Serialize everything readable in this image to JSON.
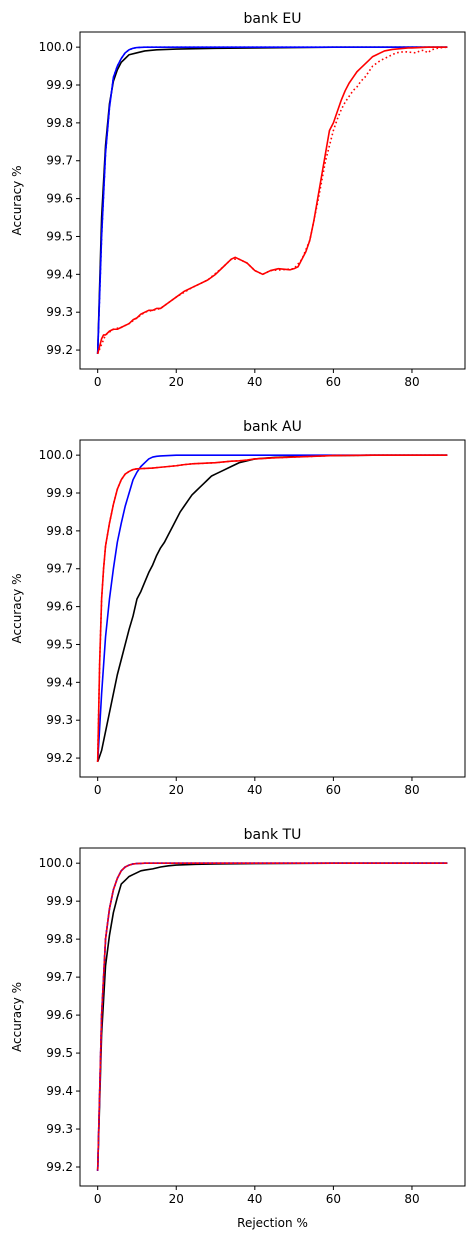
{
  "chart_data": [
    {
      "type": "line",
      "title": "bank EU",
      "xlabel": "",
      "ylabel": "Accuracy %",
      "xlim": [
        -4.5,
        93.5
      ],
      "ylim": [
        99.15,
        100.04
      ],
      "xticks": [
        "0",
        "20",
        "40",
        "60",
        "80"
      ],
      "yticks": [
        "99.2",
        "99.3",
        "99.4",
        "99.5",
        "99.6",
        "99.7",
        "99.8",
        "99.9",
        "100.0"
      ],
      "grid": false,
      "series": [
        {
          "color": "#000000",
          "style": "solid",
          "x": [
            0,
            1,
            2,
            3,
            4,
            5,
            6,
            7,
            8,
            10,
            12,
            15,
            20,
            30,
            40,
            60,
            80,
            89
          ],
          "y": [
            99.19,
            99.55,
            99.74,
            99.85,
            99.91,
            99.94,
            99.96,
            99.97,
            99.98,
            99.985,
            99.99,
            99.993,
            99.995,
            99.997,
            99.998,
            100.0,
            100.0,
            100.0
          ]
        },
        {
          "color": "#0000ff",
          "style": "solid",
          "x": [
            0,
            1,
            2,
            3,
            4,
            5,
            6,
            7,
            8,
            9,
            10,
            12,
            15,
            20,
            40,
            60,
            89
          ],
          "y": [
            99.19,
            99.5,
            99.72,
            99.84,
            99.92,
            99.95,
            99.97,
            99.985,
            99.993,
            99.997,
            99.999,
            100.0,
            100.0,
            100.0,
            100.0,
            100.0,
            100.0
          ]
        },
        {
          "color": "#0000ff",
          "style": "dotted",
          "x": [
            0,
            1,
            2,
            3,
            4,
            5,
            6,
            7,
            8,
            9,
            10,
            12,
            15,
            20,
            40,
            60,
            89
          ],
          "y": [
            99.19,
            99.5,
            99.72,
            99.84,
            99.92,
            99.95,
            99.97,
            99.985,
            99.993,
            99.997,
            99.999,
            100.0,
            100.0,
            100.0,
            100.0,
            100.0,
            100.0
          ]
        },
        {
          "color": "#ff0000",
          "style": "solid",
          "x": [
            0,
            0.5,
            1,
            1.5,
            2,
            3,
            4,
            5,
            6,
            7,
            8,
            9,
            10,
            11,
            12,
            13,
            14,
            15,
            16,
            18,
            20,
            22,
            24,
            26,
            28,
            30,
            32,
            33,
            34,
            35,
            36,
            37,
            38,
            40,
            41,
            42,
            44,
            46,
            48,
            49,
            50,
            51,
            52,
            53,
            54,
            55,
            56,
            57,
            58,
            59,
            60,
            61,
            62,
            63,
            64,
            65,
            66,
            67,
            68,
            69,
            70,
            71,
            72,
            73,
            74,
            75,
            76,
            77,
            78,
            79,
            80,
            82,
            84,
            86,
            89
          ],
          "y": [
            99.19,
            99.21,
            99.23,
            99.24,
            99.24,
            99.25,
            99.255,
            99.255,
            99.26,
            99.265,
            99.27,
            99.28,
            99.285,
            99.295,
            99.3,
            99.305,
            99.305,
            99.31,
            99.31,
            99.325,
            99.34,
            99.355,
            99.365,
            99.375,
            99.385,
            99.4,
            99.42,
            99.43,
            99.44,
            99.445,
            99.44,
            99.435,
            99.43,
            99.41,
            99.405,
            99.4,
            99.41,
            99.415,
            99.413,
            99.412,
            99.415,
            99.42,
            99.44,
            99.46,
            99.49,
            99.54,
            99.6,
            99.66,
            99.72,
            99.78,
            99.8,
            99.83,
            99.86,
            99.885,
            99.905,
            99.92,
            99.935,
            99.945,
            99.955,
            99.965,
            99.975,
            99.98,
            99.985,
            99.99,
            99.992,
            99.994,
            99.995,
            99.996,
            99.997,
            99.998,
            99.998,
            99.999,
            100.0,
            100.0,
            100.0
          ]
        },
        {
          "color": "#ff0000",
          "style": "dotted",
          "x": [
            0,
            2,
            4,
            6,
            8,
            10,
            12,
            14,
            16,
            20,
            24,
            28,
            32,
            34,
            36,
            38,
            40,
            42,
            44,
            48,
            50,
            52,
            54,
            56,
            58,
            59,
            60,
            61,
            62,
            63,
            64,
            65,
            66,
            67,
            68,
            69,
            70,
            72,
            74,
            76,
            78,
            80,
            81,
            82,
            83,
            84,
            85,
            86,
            87,
            89
          ],
          "y": [
            99.19,
            99.24,
            99.255,
            99.26,
            99.27,
            99.285,
            99.3,
            99.305,
            99.31,
            99.34,
            99.365,
            99.385,
            99.42,
            99.44,
            99.44,
            99.43,
            99.41,
            99.4,
            99.41,
            99.413,
            99.415,
            99.44,
            99.49,
            99.59,
            99.7,
            99.74,
            99.78,
            99.81,
            99.835,
            99.855,
            99.87,
            99.885,
            99.895,
            99.91,
            99.92,
            99.935,
            99.95,
            99.965,
            99.975,
            99.985,
            99.988,
            99.986,
            99.985,
            99.99,
            99.992,
            99.985,
            99.993,
            99.996,
            99.998,
            100.0
          ]
        }
      ]
    },
    {
      "type": "line",
      "title": "bank AU",
      "xlabel": "",
      "ylabel": "Accuracy %",
      "xlim": [
        -4.5,
        93.5
      ],
      "ylim": [
        99.15,
        100.04
      ],
      "xticks": [
        "0",
        "20",
        "40",
        "60",
        "80"
      ],
      "yticks": [
        "99.2",
        "99.3",
        "99.4",
        "99.5",
        "99.6",
        "99.7",
        "99.8",
        "99.9",
        "100.0"
      ],
      "grid": false,
      "series": [
        {
          "color": "#000000",
          "style": "solid",
          "x": [
            0,
            1,
            2,
            3,
            4,
            5,
            6,
            7,
            8,
            9,
            10,
            11,
            12,
            13,
            14,
            15,
            16,
            17,
            18,
            19,
            20,
            21,
            22,
            23,
            24,
            25,
            26,
            27,
            28,
            29,
            30,
            32,
            34,
            36,
            38,
            40,
            45,
            50,
            55,
            60,
            70,
            80,
            89
          ],
          "y": [
            99.19,
            99.22,
            99.27,
            99.32,
            99.37,
            99.42,
            99.46,
            99.5,
            99.54,
            99.575,
            99.62,
            99.64,
            99.665,
            99.69,
            99.71,
            99.735,
            99.755,
            99.77,
            99.79,
            99.81,
            99.83,
            99.85,
            99.865,
            99.88,
            99.895,
            99.905,
            99.915,
            99.925,
            99.935,
            99.945,
            99.95,
            99.96,
            99.97,
            99.98,
            99.985,
            99.99,
            99.994,
            99.996,
            99.998,
            99.999,
            100.0,
            100.0,
            100.0
          ]
        },
        {
          "color": "#0000ff",
          "style": "solid",
          "x": [
            0,
            1,
            2,
            3,
            4,
            5,
            6,
            7,
            8,
            9,
            10,
            11,
            12,
            13,
            14,
            15,
            16,
            18,
            20,
            25,
            30,
            40,
            60,
            89
          ],
          "y": [
            99.19,
            99.37,
            99.52,
            99.62,
            99.7,
            99.77,
            99.82,
            99.865,
            99.9,
            99.935,
            99.955,
            99.97,
            99.98,
            99.99,
            99.995,
            99.997,
            99.998,
            99.999,
            100.0,
            100.0,
            100.0,
            100.0,
            100.0,
            100.0
          ]
        },
        {
          "color": "#ff0000",
          "style": "solid",
          "x": [
            0,
            0.5,
            1,
            1.5,
            2,
            3,
            4,
            5,
            6,
            7,
            8,
            9,
            10,
            12,
            14,
            16,
            18,
            20,
            22,
            24,
            26,
            28,
            30,
            32,
            34,
            36,
            38,
            40,
            45,
            50,
            55,
            60,
            70,
            80,
            89
          ],
          "y": [
            99.19,
            99.45,
            99.62,
            99.7,
            99.76,
            99.82,
            99.87,
            99.91,
            99.935,
            99.95,
            99.957,
            99.962,
            99.964,
            99.965,
            99.966,
            99.968,
            99.97,
            99.972,
            99.975,
            99.977,
            99.978,
            99.979,
            99.98,
            99.982,
            99.984,
            99.985,
            99.987,
            99.99,
            99.993,
            99.995,
            99.997,
            99.999,
            100.0,
            100.0,
            100.0
          ]
        },
        {
          "color": "#ff0000",
          "style": "dotted",
          "x": [
            0,
            0.5,
            1,
            1.5,
            2,
            3,
            4,
            5,
            6,
            7,
            8,
            9,
            10,
            12,
            14,
            16,
            18,
            20,
            22,
            24,
            26,
            28,
            30,
            32,
            34,
            36,
            38,
            40,
            45,
            50,
            55,
            60,
            70,
            80,
            89
          ],
          "y": [
            99.19,
            99.45,
            99.62,
            99.7,
            99.76,
            99.82,
            99.87,
            99.91,
            99.935,
            99.95,
            99.957,
            99.962,
            99.964,
            99.965,
            99.966,
            99.968,
            99.97,
            99.972,
            99.975,
            99.977,
            99.978,
            99.979,
            99.98,
            99.982,
            99.984,
            99.985,
            99.987,
            99.99,
            99.993,
            99.995,
            99.997,
            99.999,
            100.0,
            100.0,
            100.0
          ]
        }
      ]
    },
    {
      "type": "line",
      "title": "bank TU",
      "xlabel": "Rejection %",
      "ylabel": "Accuracy %",
      "xlim": [
        -4.5,
        93.5
      ],
      "ylim": [
        99.15,
        100.04
      ],
      "xticks": [
        "0",
        "20",
        "40",
        "60",
        "80"
      ],
      "yticks": [
        "99.2",
        "99.3",
        "99.4",
        "99.5",
        "99.6",
        "99.7",
        "99.8",
        "99.9",
        "100.0"
      ],
      "grid": false,
      "series": [
        {
          "color": "#000000",
          "style": "solid",
          "x": [
            0,
            1,
            2,
            3,
            4,
            5,
            6,
            7,
            8,
            9,
            10,
            11,
            12,
            14,
            16,
            18,
            20,
            25,
            30,
            40,
            60,
            89
          ],
          "y": [
            99.19,
            99.55,
            99.73,
            99.81,
            99.87,
            99.91,
            99.945,
            99.955,
            99.965,
            99.97,
            99.975,
            99.98,
            99.982,
            99.985,
            99.99,
            99.993,
            99.995,
            99.997,
            99.998,
            99.999,
            100.0,
            100.0
          ]
        },
        {
          "color": "#0000ff",
          "style": "solid",
          "x": [
            0,
            1,
            2,
            3,
            4,
            5,
            6,
            7,
            8,
            9,
            10,
            12,
            15,
            20,
            40,
            60,
            89
          ],
          "y": [
            99.19,
            99.6,
            99.8,
            99.88,
            99.93,
            99.96,
            99.98,
            99.99,
            99.995,
            99.998,
            99.999,
            100.0,
            100.0,
            100.0,
            100.0,
            100.0,
            100.0
          ]
        },
        {
          "color": "#ff0000",
          "style": "solid",
          "x": [
            0,
            1,
            2,
            3,
            4,
            5,
            6,
            7,
            8,
            9,
            10,
            12,
            15,
            20,
            40,
            60,
            89
          ],
          "y": [
            99.19,
            99.6,
            99.8,
            99.88,
            99.93,
            99.96,
            99.98,
            99.99,
            99.995,
            99.998,
            99.999,
            100.0,
            100.0,
            100.0,
            100.0,
            100.0,
            100.0
          ]
        },
        {
          "color": "#8b008b",
          "style": "dotted",
          "x": [
            0,
            1,
            2,
            3,
            4,
            5,
            6,
            7,
            8,
            9,
            10,
            12,
            15,
            20,
            40,
            60,
            89
          ],
          "y": [
            99.19,
            99.6,
            99.8,
            99.88,
            99.93,
            99.96,
            99.98,
            99.99,
            99.995,
            99.998,
            99.999,
            100.0,
            100.0,
            100.0,
            100.0,
            100.0,
            100.0
          ]
        }
      ]
    }
  ]
}
